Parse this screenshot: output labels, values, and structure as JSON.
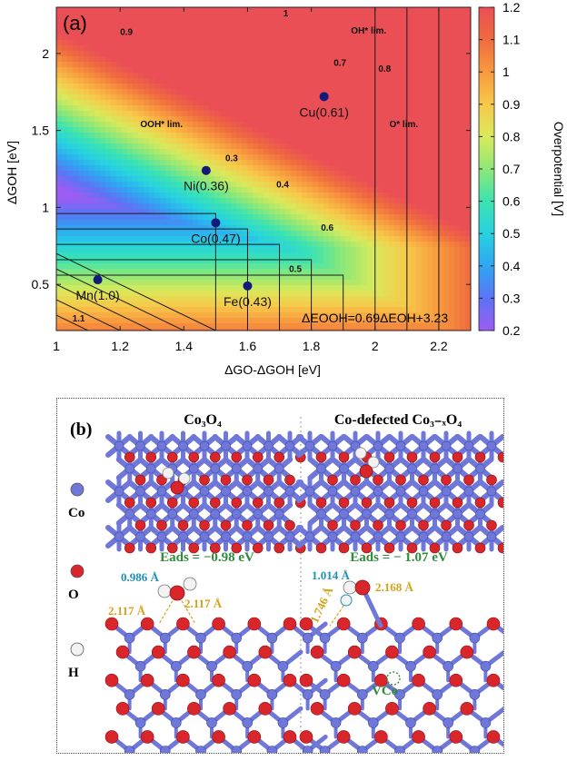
{
  "panel_a": {
    "label": "(a)",
    "annotation_formula": "ΔEOOH=0.69ΔEOH+3.23",
    "chart_data": {
      "type": "heatmap",
      "xlabel": "ΔGO-ΔGOH [eV]",
      "ylabel": "ΔGOH [eV]",
      "xlim": [
        1.0,
        2.3
      ],
      "ylim": [
        0.2,
        2.3
      ],
      "x_ticks": [
        "1",
        "1.2",
        "1.4",
        "1.6",
        "1.8",
        "2",
        "2.2"
      ],
      "y_ticks": [
        "0.5",
        "1",
        "1.5",
        "2"
      ],
      "colorbar": {
        "label": "Overpotential [V]",
        "range": [
          0.2,
          1.2
        ],
        "ticks": [
          "0.2",
          "0.3",
          "0.4",
          "0.5",
          "0.6",
          "0.7",
          "0.8",
          "0.9",
          "1",
          "1.1",
          "1.2"
        ],
        "colors": [
          "#9d5cf2",
          "#5b74f5",
          "#2fa6f2",
          "#27d2e0",
          "#3be3b1",
          "#8ee877",
          "#d9e95b",
          "#f7c84a",
          "#f79a3e",
          "#f06b3f",
          "#ea4f55"
        ]
      },
      "contour_labels": [
        {
          "text": "1",
          "x": 1.72,
          "y": 2.24
        },
        {
          "text": "0.9",
          "x": 1.22,
          "y": 2.12
        },
        {
          "text": "OH* lim.",
          "x": 1.98,
          "y": 2.13
        },
        {
          "text": "0.7",
          "x": 1.89,
          "y": 1.92
        },
        {
          "text": "0.8",
          "x": 2.03,
          "y": 1.88
        },
        {
          "text": "OOH* lim.",
          "x": 1.33,
          "y": 1.52
        },
        {
          "text": "O* lim.",
          "x": 2.09,
          "y": 1.52
        },
        {
          "text": "0.3",
          "x": 1.55,
          "y": 1.3
        },
        {
          "text": "0.4",
          "x": 1.71,
          "y": 1.13
        },
        {
          "text": "0.6",
          "x": 1.85,
          "y": 0.85
        },
        {
          "text": "0.5",
          "x": 1.75,
          "y": 0.58
        },
        {
          "text": "1.1",
          "x": 1.07,
          "y": 0.26
        }
      ],
      "points": [
        {
          "label": "Cu(0.61)",
          "x": 1.84,
          "y": 1.72
        },
        {
          "label": "Ni(0.36)",
          "x": 1.47,
          "y": 1.24
        },
        {
          "label": "Co(0.47)",
          "x": 1.5,
          "y": 0.9
        },
        {
          "label": "Mn(1.0)",
          "x": 1.13,
          "y": 0.53
        },
        {
          "label": "Fe(0.43)",
          "x": 1.6,
          "y": 0.49
        }
      ]
    }
  },
  "panel_b": {
    "label": "(b)",
    "left_title": "Co₃O₄",
    "right_title": "Co-defected Co₃₋ₓO₄",
    "left_energy": "Eads = −0.98 eV",
    "right_energy": "Eads = − 1.07 eV",
    "legend": [
      {
        "name": "Co",
        "color": "#6f78d8"
      },
      {
        "name": "O",
        "color": "#d8262b"
      },
      {
        "name": "H",
        "color": "#f2f2f2"
      }
    ],
    "left_bonds": {
      "oh": "0.986 Å",
      "left": "2.117 Å",
      "right": "2.117 Å"
    },
    "right_bonds": {
      "oh": "1.014 Å",
      "h_bond": "1.746 Å",
      "co_o": "2.168 Å"
    },
    "vacancy_label": "VCo"
  }
}
